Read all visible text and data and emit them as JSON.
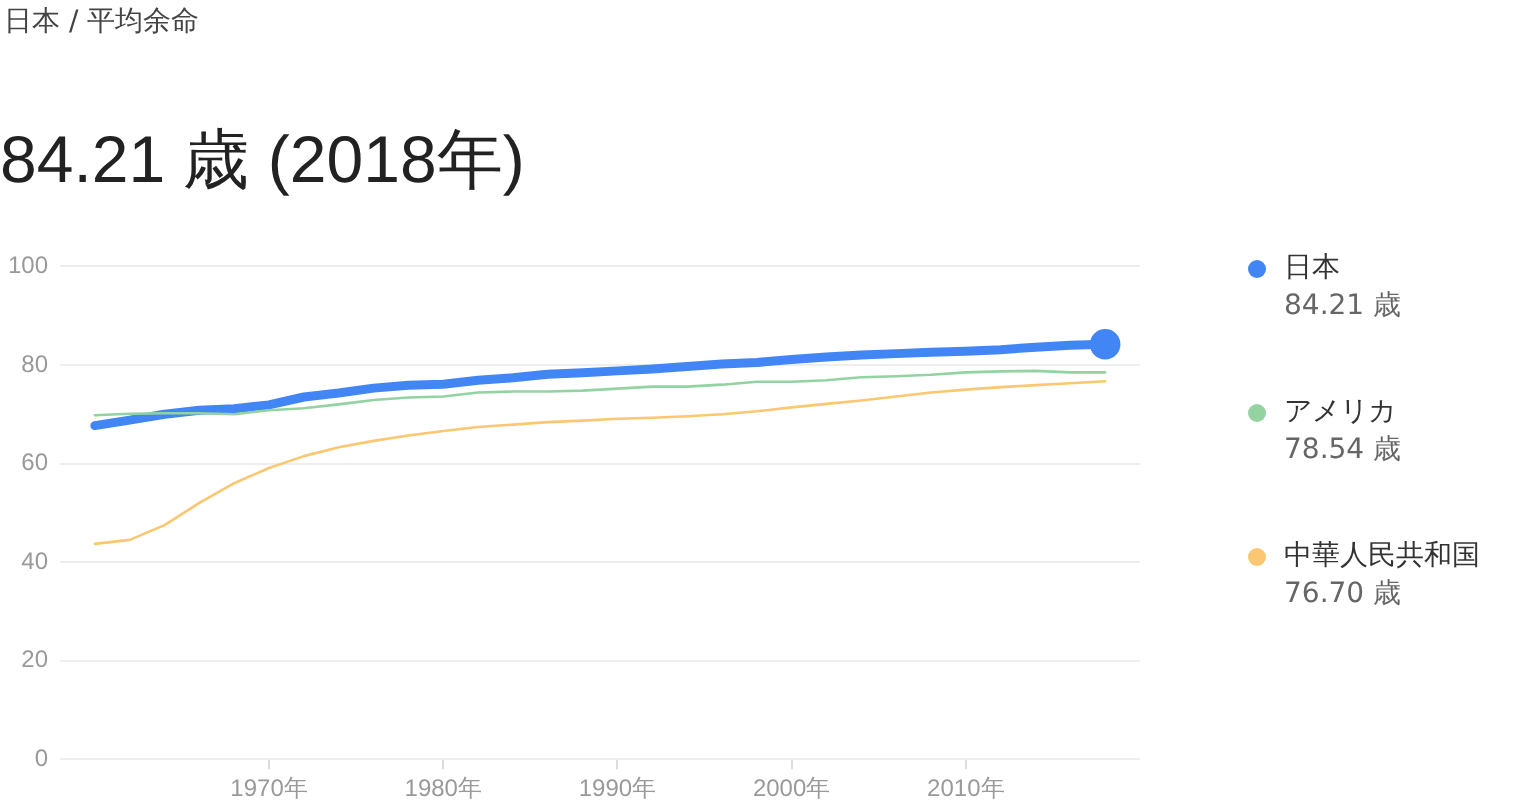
{
  "chart_data": {
    "type": "line",
    "title": "日本 / 平均余命",
    "subtitle": "84.21 歳 (2018年)",
    "xlim": [
      1958,
      2020
    ],
    "xticks": [
      {
        "value": 1970,
        "label": "1970年"
      },
      {
        "value": 1980,
        "label": "1980年"
      },
      {
        "value": 1990,
        "label": "1990年"
      },
      {
        "value": 2000,
        "label": "2000年"
      },
      {
        "value": 2010,
        "label": "2010年"
      }
    ],
    "annotations": [
      "84.21 歳",
      "78.54 歳",
      "76.70 歳"
    ],
    "ylim": [
      0,
      100
    ],
    "yticks": [
      0,
      20,
      40,
      60,
      80,
      100
    ],
    "grid": "y",
    "legend": "right",
    "x": [
      1960,
      1962,
      1964,
      1966,
      1968,
      1970,
      1972,
      1974,
      1976,
      1978,
      1980,
      1982,
      1984,
      1986,
      1988,
      1990,
      1992,
      1994,
      1996,
      1998,
      2000,
      2002,
      2004,
      2006,
      2008,
      2010,
      2012,
      2014,
      2016,
      2018
    ],
    "series": [
      {
        "name": "日本",
        "color": "#4285f4",
        "values": [
          67.7,
          68.8,
          70.0,
          70.8,
          71.1,
          71.9,
          73.5,
          74.3,
          75.3,
          75.9,
          76.1,
          76.9,
          77.4,
          78.1,
          78.4,
          78.8,
          79.2,
          79.7,
          80.2,
          80.5,
          81.1,
          81.6,
          82.0,
          82.3,
          82.6,
          82.8,
          83.1,
          83.6,
          84.0,
          84.2
        ]
      },
      {
        "name": "アメリカ",
        "color": "#93d3a2",
        "values": [
          69.8,
          70.1,
          70.2,
          70.2,
          70.0,
          70.8,
          71.2,
          72.0,
          72.9,
          73.4,
          73.6,
          74.4,
          74.6,
          74.6,
          74.8,
          75.2,
          75.6,
          75.6,
          76.0,
          76.6,
          76.6,
          76.9,
          77.5,
          77.7,
          78.0,
          78.5,
          78.7,
          78.8,
          78.5,
          78.5
        ]
      },
      {
        "name": "中華人民共和国",
        "color": "#fbc770",
        "values": [
          43.7,
          44.5,
          47.5,
          52.0,
          56.0,
          59.1,
          61.5,
          63.3,
          64.6,
          65.7,
          66.6,
          67.4,
          67.9,
          68.4,
          68.7,
          69.1,
          69.3,
          69.6,
          70.0,
          70.6,
          71.4,
          72.1,
          72.8,
          73.6,
          74.4,
          75.0,
          75.5,
          75.9,
          76.3,
          76.7
        ]
      },
      {
        "type": "scatter",
        "color": "#4285f4",
        "marker": "circle",
        "x": [
          2018
        ],
        "values": [
          84.2
        ]
      }
    ]
  }
}
